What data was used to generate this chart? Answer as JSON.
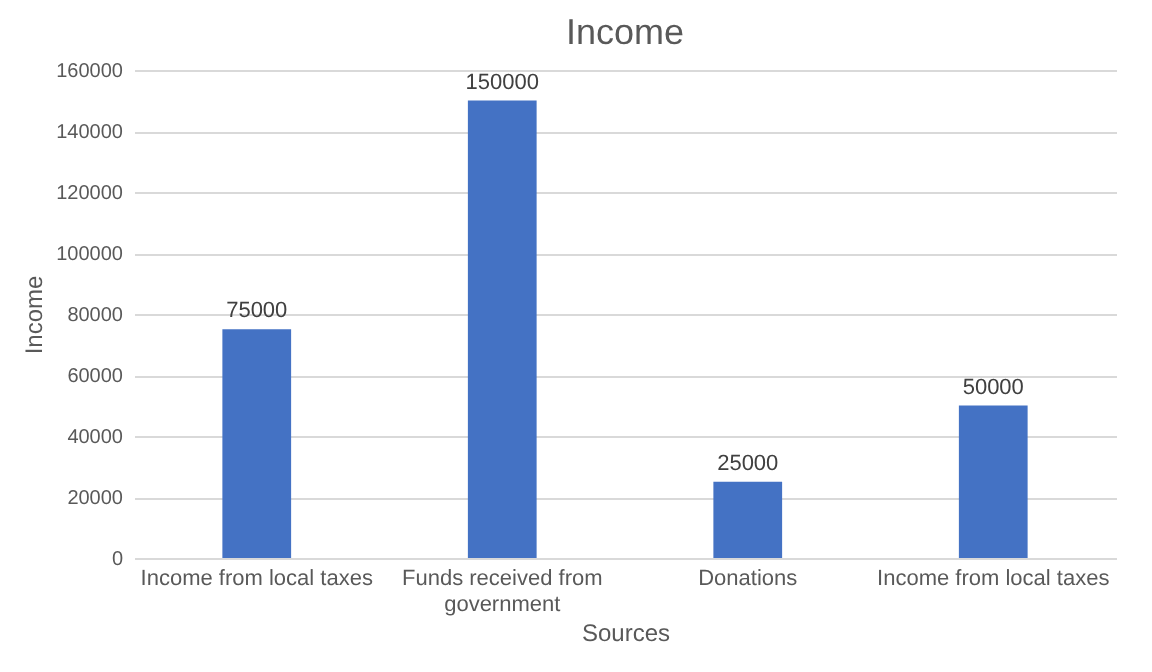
{
  "chart_data": {
    "type": "bar",
    "title": "Income",
    "xlabel": "Sources",
    "ylabel": "Income",
    "categories": [
      "Income from local taxes",
      "Funds received from government",
      "Donations",
      "Income from local taxes"
    ],
    "values": [
      75000,
      150000,
      25000,
      50000
    ],
    "color": "#4472c4",
    "ylim": [
      0,
      160000
    ],
    "yticks": [
      0,
      20000,
      40000,
      60000,
      80000,
      100000,
      120000,
      140000,
      160000
    ],
    "grid": "y",
    "data_labels": true
  }
}
